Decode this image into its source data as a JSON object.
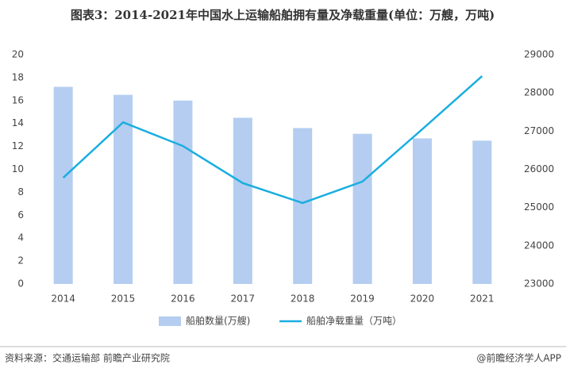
{
  "chart_data": {
    "type": "bar-line",
    "title": "图表3：2014-2021年中国水上运输船舶拥有量及净载重量(单位：万艘，万吨)",
    "categories": [
      "2014",
      "2015",
      "2016",
      "2017",
      "2018",
      "2019",
      "2020",
      "2021"
    ],
    "series": [
      {
        "name": "船舶数量(万艘)",
        "color": "#b4cdf0",
        "type": "bar",
        "values": [
          17.2,
          16.5,
          16.0,
          14.5,
          13.6,
          13.1,
          12.7,
          12.5
        ]
      },
      {
        "name": "船舶净载重量（万吨）",
        "color": "#1aaee0",
        "type": "line",
        "axis": "y2",
        "values": [
          25780,
          27230,
          26610,
          25640,
          25120,
          25680,
          27050,
          28440
        ]
      }
    ],
    "ylim": [
      0,
      20
    ],
    "yticks": [
      0,
      2,
      4,
      6,
      8,
      10,
      12,
      14,
      16,
      18,
      20
    ],
    "y2lim": [
      23000,
      29000
    ],
    "y2ticks": [
      23000,
      24000,
      25000,
      26000,
      27000,
      28000,
      29000
    ],
    "legend": "bottom",
    "source": "资料来源：交通运输部 前瞻产业研究院",
    "credit": "@前瞻经济学人APP"
  }
}
